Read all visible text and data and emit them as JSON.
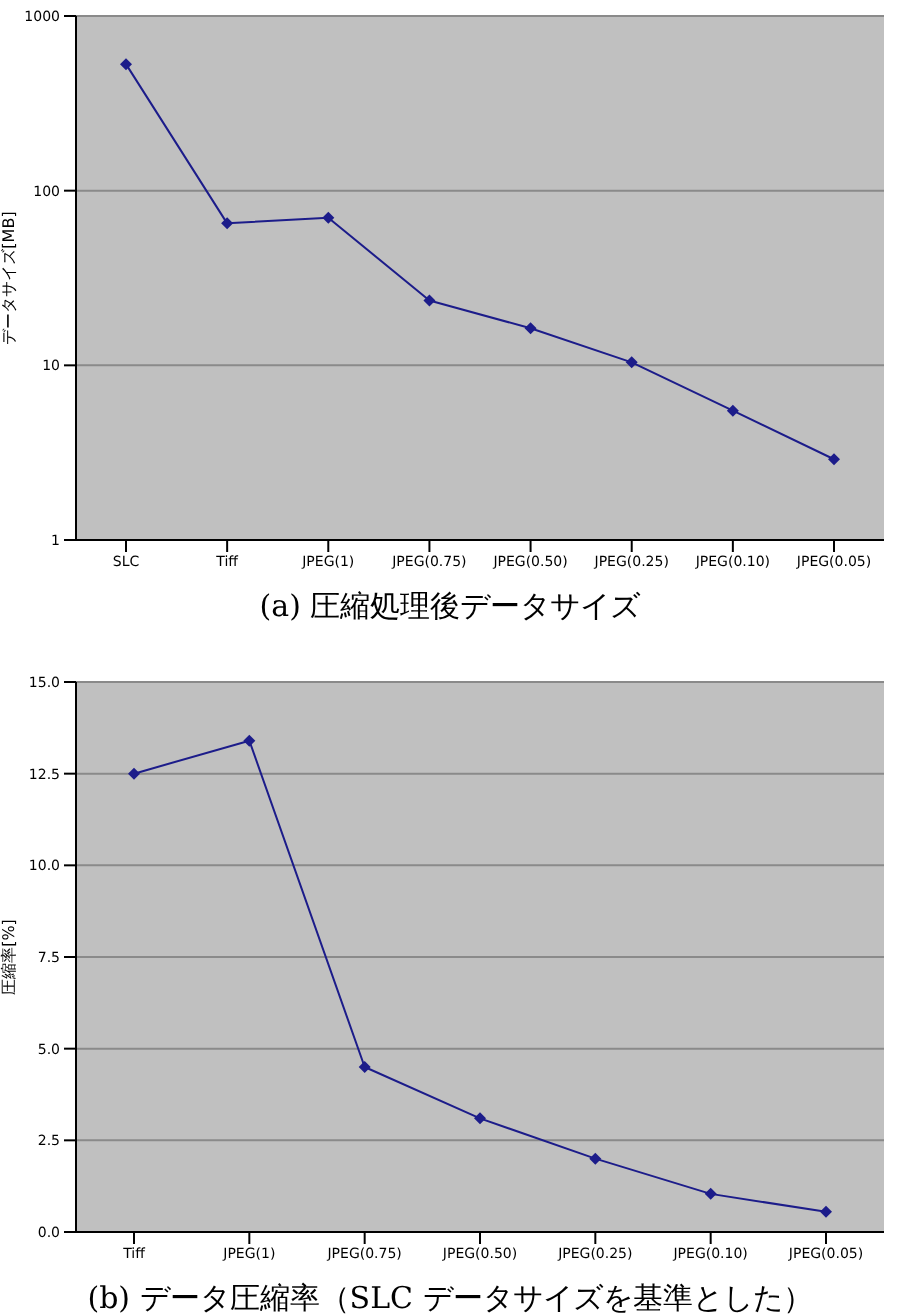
{
  "chart_data": [
    {
      "type": "line",
      "title": "(a) 圧縮処理後データサイズ",
      "ylabel": "データサイズ[MB]",
      "categories": [
        "SLC",
        "Tiff",
        "JPEG(1)",
        "JPEG(0.75)",
        "JPEG(0.50)",
        "JPEG(0.25)",
        "JPEG(0.10)",
        "JPEG(0.05)"
      ],
      "series": [
        {
          "color": "#1c1c8a",
          "values": [
            530,
            65,
            70,
            23.5,
            16.3,
            10.4,
            5.5,
            2.9
          ]
        }
      ],
      "log": "y",
      "ylim": [
        1,
        1000
      ],
      "yticks": [
        1,
        10,
        100,
        1000
      ],
      "grid": "y",
      "marker": "diamond",
      "line_style": "solid"
    },
    {
      "type": "line",
      "title": "(b) データ圧縮率（SLC データサイズを基準とした）",
      "ylabel": "圧縮率[%]",
      "categories": [
        "Tiff",
        "JPEG(1)",
        "JPEG(0.75)",
        "JPEG(0.50)",
        "JPEG(0.25)",
        "JPEG(0.10)",
        "JPEG(0.05)"
      ],
      "series": [
        {
          "color": "#1c1c8a",
          "values": [
            12.5,
            13.4,
            4.5,
            3.1,
            2.0,
            1.04,
            0.55
          ]
        }
      ],
      "ylim": [
        0,
        15
      ],
      "yticks": [
        {
          "value": 0,
          "label": "0.0"
        },
        {
          "value": 2.5,
          "label": "2.5"
        },
        {
          "value": 5,
          "label": "5.0"
        },
        {
          "value": 7.5,
          "label": "7.5"
        },
        {
          "value": 10,
          "label": "10.0"
        },
        {
          "value": 12.5,
          "label": "12.5"
        },
        {
          "value": 15,
          "label": "15.0"
        }
      ],
      "grid": "y",
      "marker": "diamond",
      "line_style": "solid"
    }
  ]
}
